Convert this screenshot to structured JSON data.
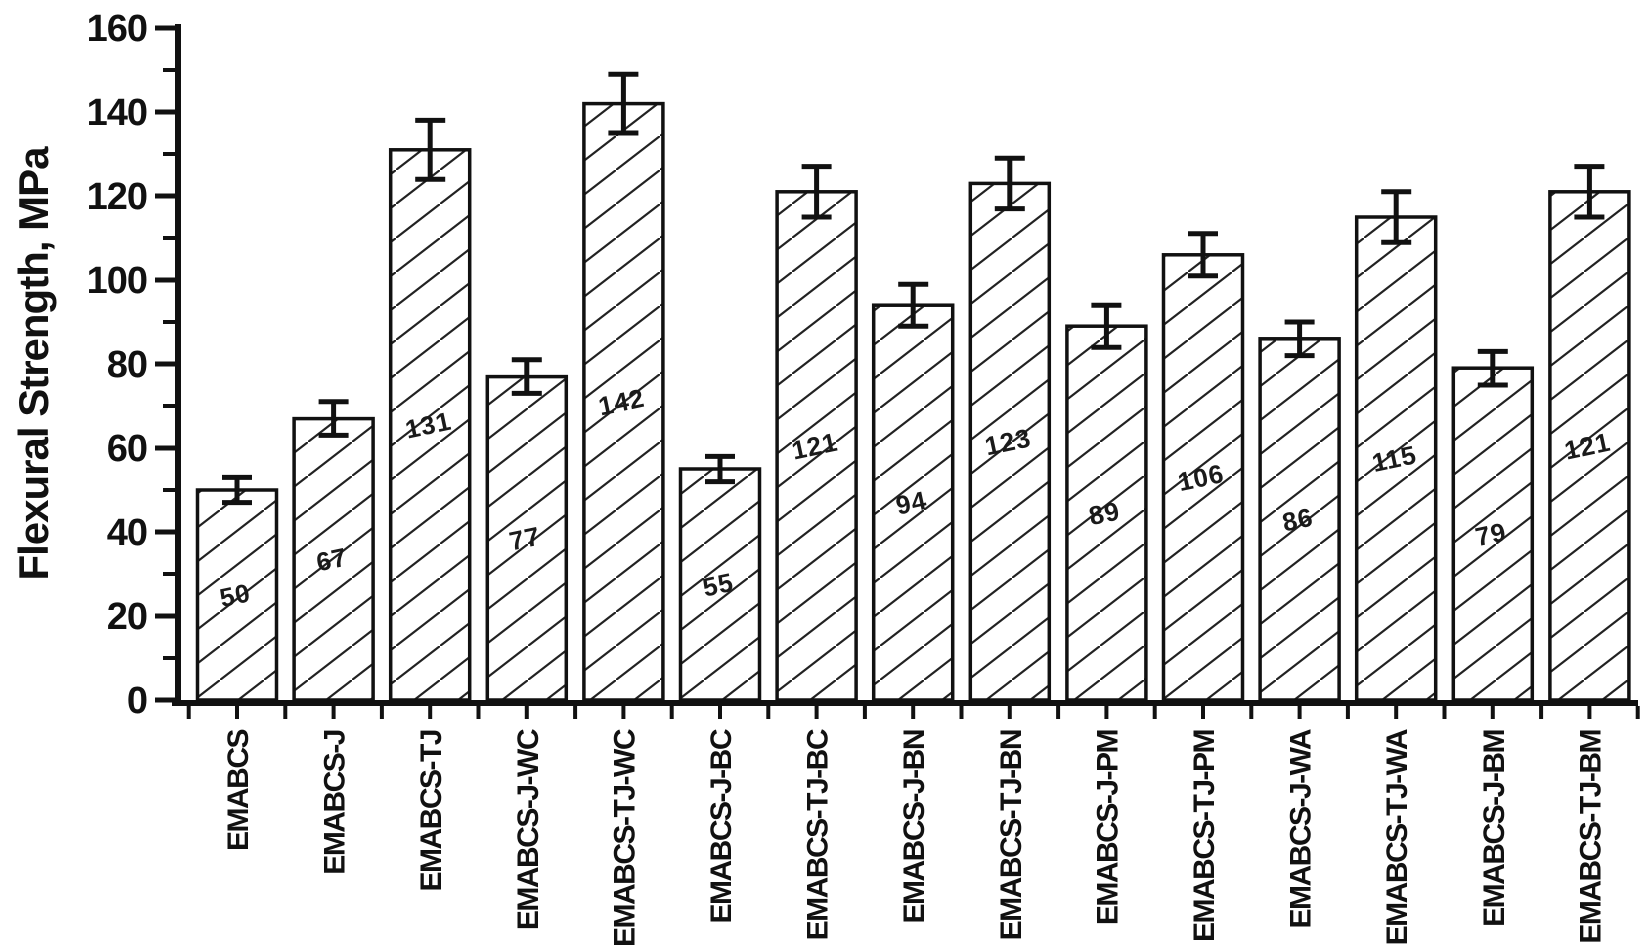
{
  "figure": {
    "background": "#ffffff",
    "ink_color": "#111111",
    "bar_fill": "#ffffff",
    "hatch_color": "#222222"
  },
  "chart_data": {
    "type": "bar",
    "title": "",
    "xlabel": "",
    "ylabel": "Flexural Strength, MPa",
    "ylim": [
      0,
      160
    ],
    "grid": false,
    "legend": false,
    "bar_style": "white fill, forward-diagonal hatch, black outline, symmetric error bars, value label centered inside each bar",
    "yticks_major": [
      0,
      20,
      40,
      60,
      80,
      100,
      120,
      140,
      160
    ],
    "ytick_labels": [
      "0",
      "20",
      "40",
      "60",
      "80",
      "100",
      "120",
      "140",
      "160"
    ],
    "yticks_minor": [
      10,
      30,
      50,
      70,
      90,
      110,
      130,
      150
    ],
    "categories": [
      "EMABCS",
      "EMABCS-J",
      "EMABCS-TJ",
      "EMABCS-J-WC",
      "EMABCS-TJ-WC",
      "EMABCS-J-BC",
      "EMABCS-TJ-BC",
      "EMABCS-J-BN",
      "EMABCS-TJ-BN",
      "EMABCS-J-PM",
      "EMABCS-TJ-PM",
      "EMABCS-J-WA",
      "EMABCS-TJ-WA",
      "EMABCS-J-BM",
      "EMABCS-TJ-BM"
    ],
    "values": [
      50,
      67,
      131,
      77,
      142,
      55,
      121,
      94,
      123,
      89,
      106,
      86,
      115,
      79,
      121
    ],
    "bar_labels": [
      "50",
      "67",
      "131",
      "77",
      "142",
      "55",
      "121",
      "94",
      "123",
      "89",
      "106",
      "86",
      "115",
      "79",
      "121"
    ],
    "errors": [
      3,
      4,
      7,
      4,
      7,
      3,
      6,
      5,
      6,
      5,
      5,
      4,
      6,
      4,
      6
    ]
  }
}
